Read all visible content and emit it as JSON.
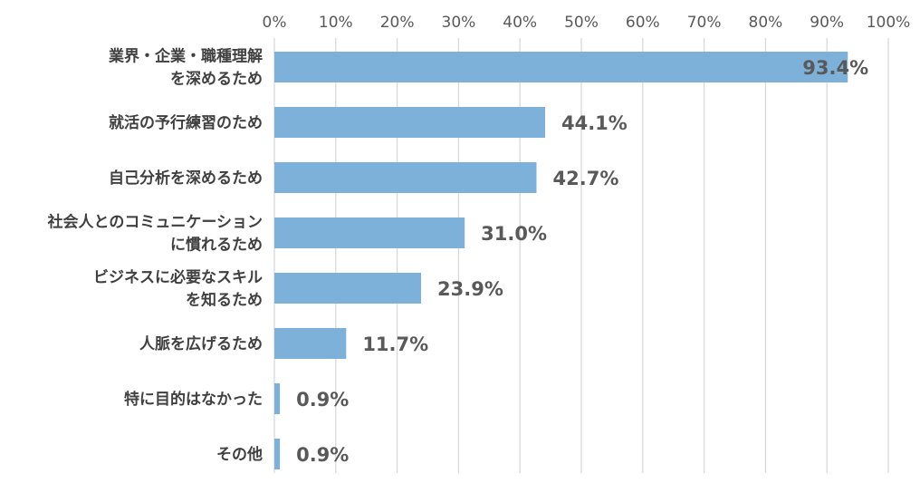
{
  "chart_data": {
    "type": "bar",
    "orientation": "horizontal",
    "categories": [
      [
        "業界・企業・職種理解",
        "を深めるため"
      ],
      [
        "就活の予行練習のため"
      ],
      [
        "自己分析を深めるため"
      ],
      [
        "社会人とのコミュニケーション",
        "に慣れるため"
      ],
      [
        "ビジネスに必要なスキル",
        "を知るため"
      ],
      [
        "人脈を広げるため"
      ],
      [
        "特に目的はなかった"
      ],
      [
        "その他"
      ]
    ],
    "values": [
      93.4,
      44.1,
      42.7,
      31.0,
      23.9,
      11.7,
      0.9,
      0.9
    ],
    "data_labels": [
      "93.4%",
      "44.1%",
      "42.7%",
      "31.0%",
      "23.9%",
      "11.7%",
      "0.9%",
      "0.9%"
    ],
    "x_ticks": [
      "0%",
      "10%",
      "20%",
      "30%",
      "40%",
      "50%",
      "60%",
      "70%",
      "80%",
      "90%",
      "100%"
    ],
    "xlim": [
      0,
      100
    ],
    "grid": true,
    "bar_color": "#7EB1DA",
    "grid_color": "#D9D9D9",
    "label_color": "#595959",
    "title": "",
    "xlabel": "",
    "ylabel": ""
  }
}
